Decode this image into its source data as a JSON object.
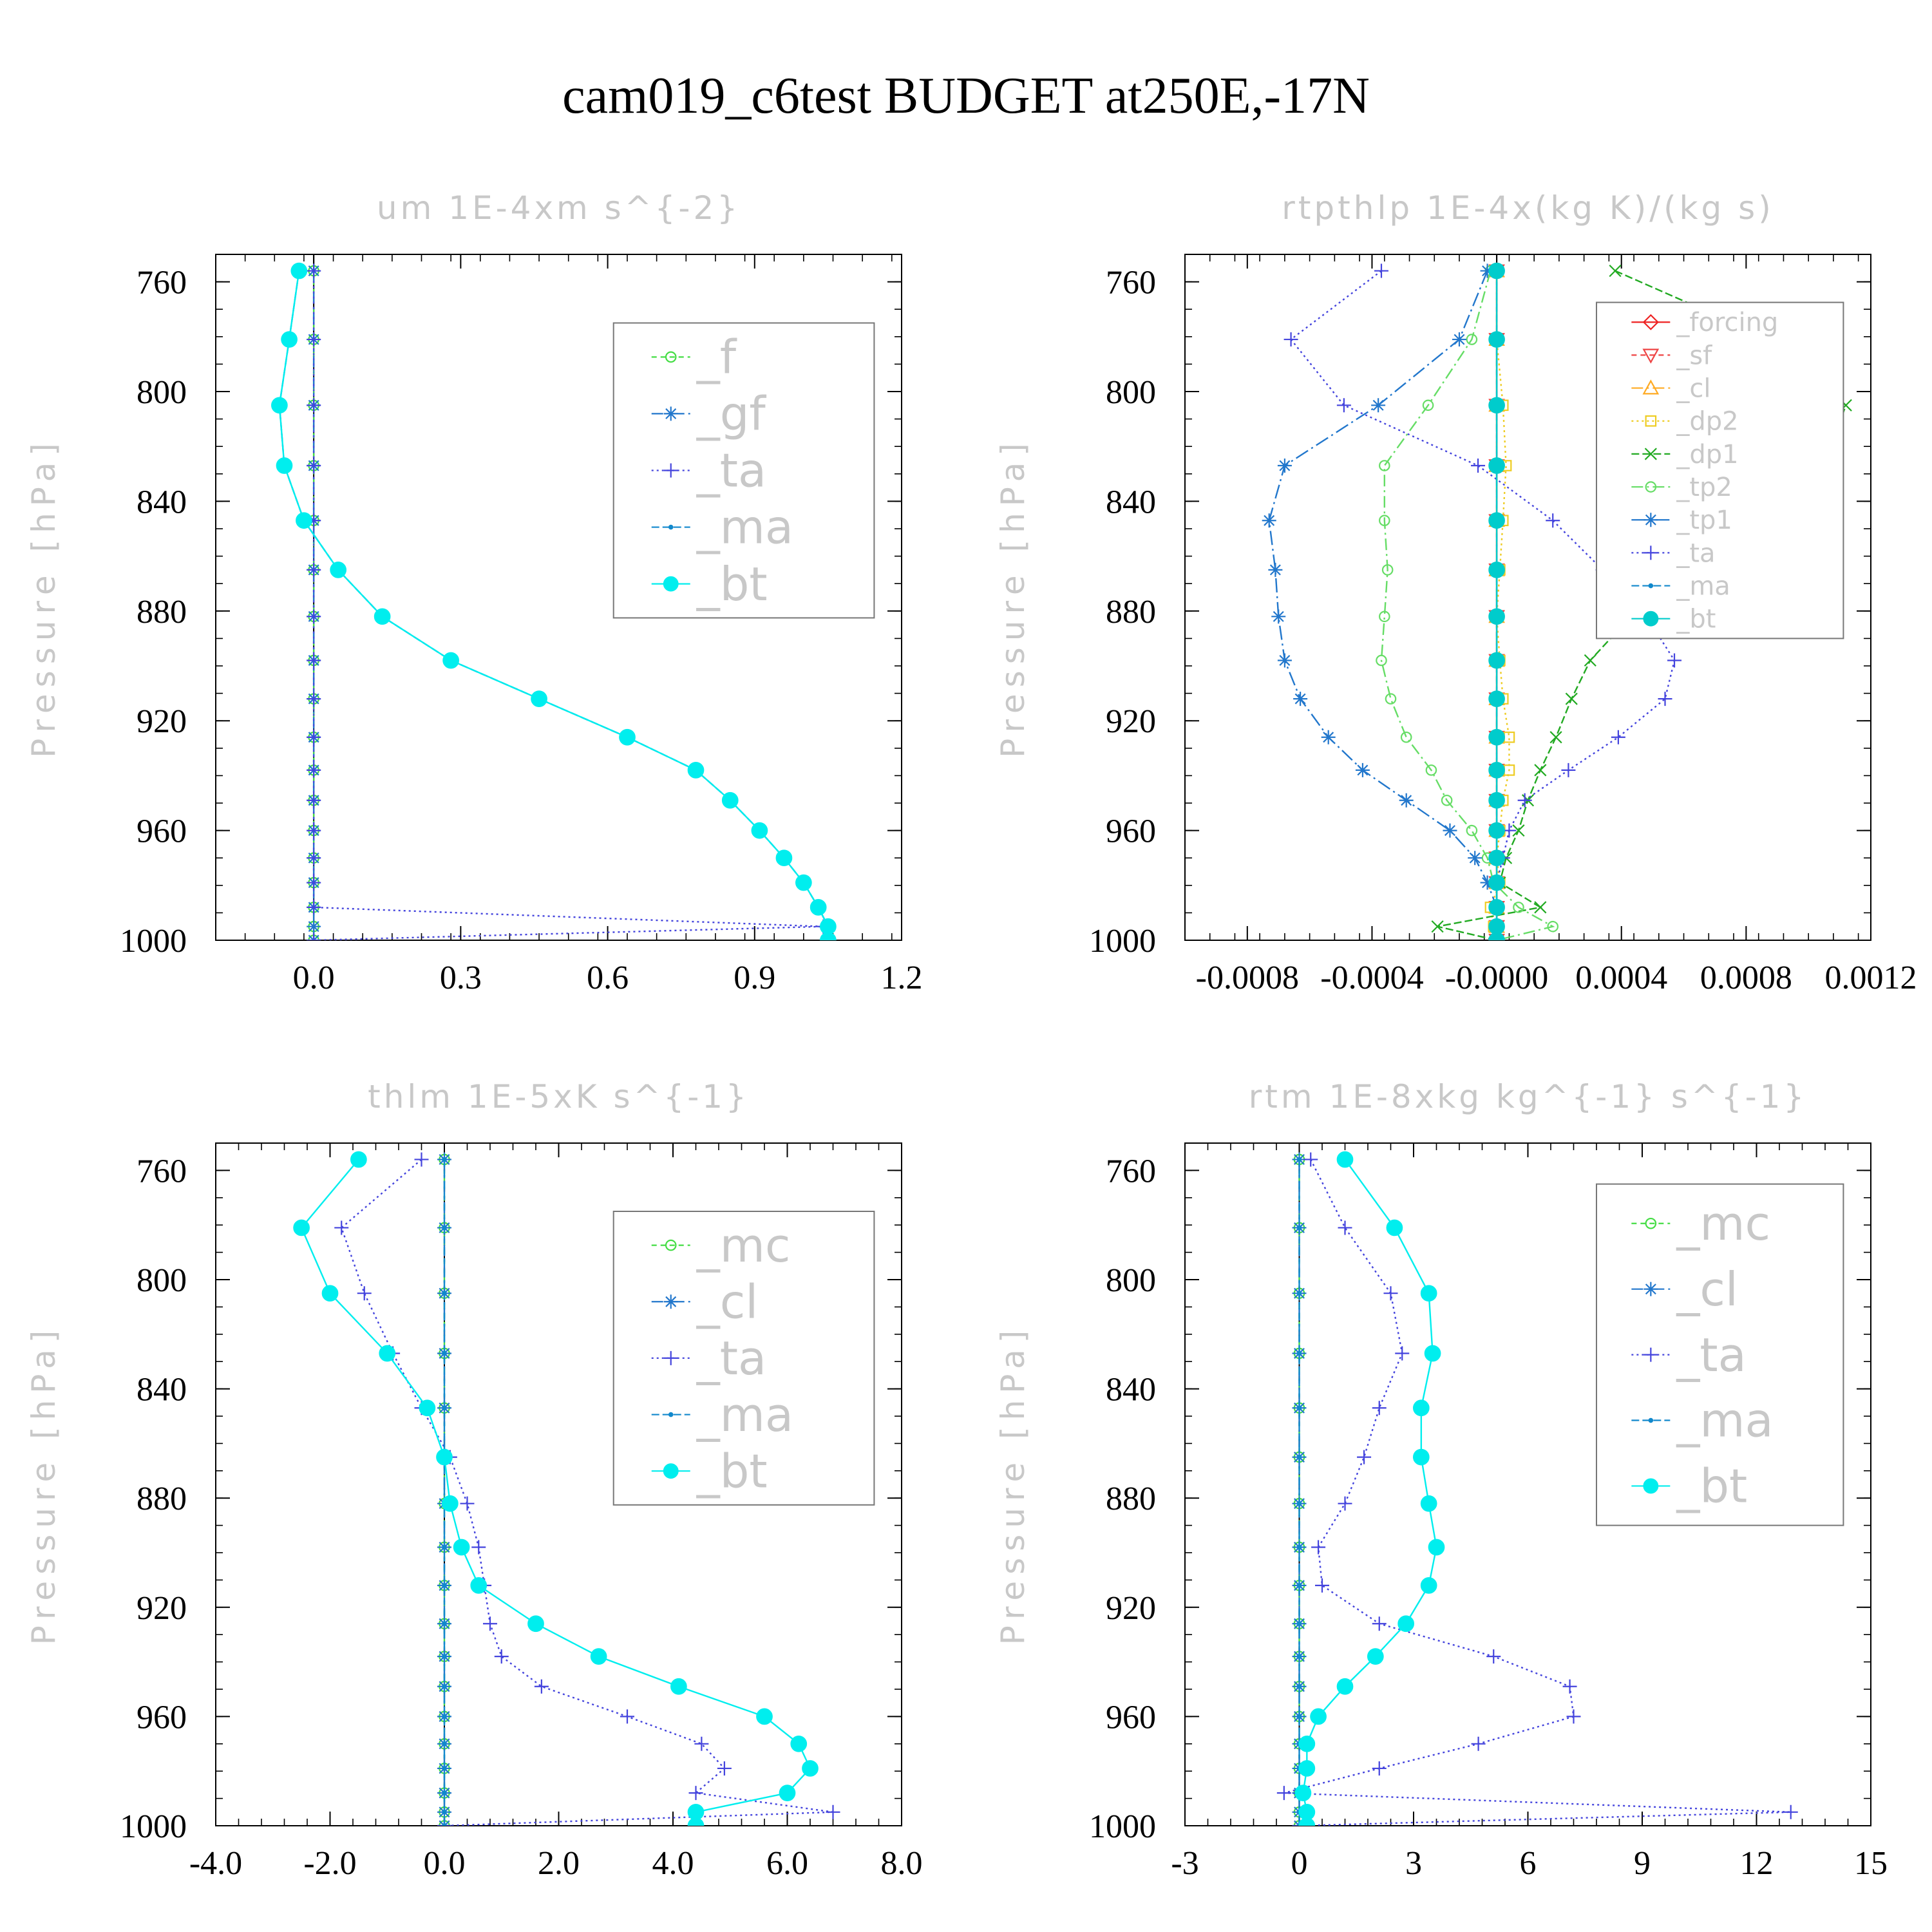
{
  "title": "cam019_c6test  BUDGET at250E,-17N",
  "chart_data": [
    {
      "type": "line",
      "title": "um   1E-4xm s^{-2}",
      "ylabel": "Pressure [hPa]",
      "xlim": [
        -0.2,
        1.2
      ],
      "ylim": [
        1000,
        750
      ],
      "xticks": [
        0.0,
        0.3,
        0.6,
        0.9,
        1.2
      ],
      "xtick_labels": [
        "0.0",
        "0.3",
        "0.6",
        "0.9",
        "1.2"
      ],
      "yticks": [
        760,
        800,
        840,
        880,
        920,
        960,
        1000
      ],
      "levels": [
        756,
        781,
        805,
        827,
        847,
        865,
        882,
        898,
        912,
        926,
        938,
        949,
        960,
        970,
        979,
        988,
        995,
        1000
      ],
      "legend": "right",
      "legend_box": [
        0.58,
        0.1,
        0.96,
        0.53
      ],
      "series": [
        {
          "name": "_f",
          "color": "#44dd44",
          "marker": "circle",
          "dash": "8 6",
          "values": [
            0,
            0,
            0,
            0,
            0,
            0,
            0,
            0,
            0,
            0,
            0,
            0,
            0,
            0,
            0,
            0,
            0,
            0
          ]
        },
        {
          "name": "_gf",
          "color": "#2277cc",
          "marker": "star",
          "dash": "18 6 3 6",
          "values": [
            0,
            0,
            0,
            0,
            0,
            0,
            0,
            0,
            0,
            0,
            0,
            0,
            0,
            0,
            0,
            0,
            0,
            0
          ]
        },
        {
          "name": "_ta",
          "color": "#4444dd",
          "marker": "plus",
          "dash": "3 5",
          "values": [
            0,
            0,
            0,
            0,
            0,
            0,
            0,
            0,
            0,
            0,
            0,
            0,
            0,
            0,
            0,
            0,
            1.04,
            0
          ]
        },
        {
          "name": "_ma",
          "color": "#1188cc",
          "marker": "dot",
          "dash": "12 5",
          "values": [
            -0.03,
            -0.05,
            -0.07,
            -0.06,
            -0.02,
            0.05,
            0.14,
            0.28,
            0.46,
            0.64,
            0.78,
            0.85,
            0.91,
            0.96,
            1.0,
            1.03,
            1.05,
            1.05
          ]
        },
        {
          "name": "_bt",
          "color": "#00eeee",
          "marker": "filled",
          "dash": "",
          "values": [
            -0.03,
            -0.05,
            -0.07,
            -0.06,
            -0.02,
            0.05,
            0.14,
            0.28,
            0.46,
            0.64,
            0.78,
            0.85,
            0.91,
            0.96,
            1.0,
            1.03,
            1.05,
            1.05
          ]
        }
      ]
    },
    {
      "type": "line",
      "title": "rtpthlp   1E-4x(kg K)/(kg s)",
      "ylabel": "Pressure [hPa]",
      "xlim": [
        -0.001,
        0.0012
      ],
      "ylim": [
        1000,
        750
      ],
      "xticks": [
        -0.0008,
        -0.0004,
        0.0,
        0.0004,
        0.0008,
        0.0012
      ],
      "xtick_labels": [
        "-0.0008",
        "-0.0004",
        "-0.0000",
        "0.0004",
        "0.0008",
        "0.0012"
      ],
      "yticks": [
        760,
        800,
        840,
        880,
        920,
        960,
        1000
      ],
      "levels": [
        756,
        781,
        805,
        827,
        847,
        865,
        882,
        898,
        912,
        926,
        938,
        949,
        960,
        970,
        979,
        988,
        995,
        1000
      ],
      "legend": "right",
      "legend_box": [
        0.6,
        0.07,
        0.96,
        0.56
      ],
      "series": [
        {
          "name": "_forcing",
          "color": "#ee2222",
          "marker": "diamond",
          "dash": "",
          "values": [
            0,
            0,
            0,
            0,
            0,
            0,
            0,
            0,
            0,
            0,
            0,
            0,
            0,
            0,
            0,
            0,
            0,
            0
          ]
        },
        {
          "name": "_sf",
          "color": "#ee4444",
          "marker": "tridown",
          "dash": "8 6",
          "values": [
            0,
            0,
            0,
            0,
            0,
            0,
            0,
            0,
            0,
            0,
            0,
            0,
            0,
            0,
            0,
            0,
            0,
            0
          ]
        },
        {
          "name": "_cl",
          "color": "#ffaa22",
          "marker": "triup",
          "dash": "18 6 3 6",
          "values": [
            0,
            0,
            0,
            0,
            0,
            0,
            0,
            0,
            0,
            0,
            0,
            0,
            0,
            0,
            0,
            0,
            0,
            0
          ]
        },
        {
          "name": "_dp2",
          "color": "#eecc22",
          "marker": "square",
          "dash": "3 5",
          "values": [
            0,
            0,
            2e-05,
            3e-05,
            2e-05,
            1e-05,
            0,
            1e-05,
            2e-05,
            4e-05,
            4e-05,
            2e-05,
            1e-05,
            0,
            1e-05,
            -2e-05,
            -1e-05,
            0
          ]
        },
        {
          "name": "_dp1",
          "color": "#22aa22",
          "marker": "x",
          "dash": "12 5",
          "values": [
            0.00038,
            0.00088,
            0.00112,
            0.00105,
            0.00082,
            0.00062,
            0.00043,
            0.0003,
            0.00024,
            0.00019,
            0.00014,
            0.0001,
            7e-05,
            3e-05,
            1e-05,
            0.00014,
            -0.00019,
            0
          ]
        },
        {
          "name": "_tp2",
          "color": "#66dd66",
          "marker": "circle",
          "dash": "18 6 3 6",
          "values": [
            -2e-05,
            -8e-05,
            -0.00022,
            -0.00036,
            -0.00036,
            -0.00035,
            -0.00036,
            -0.00037,
            -0.00034,
            -0.00029,
            -0.00021,
            -0.00016,
            -8e-05,
            -3e-05,
            -1e-05,
            7e-05,
            0.00018,
            0
          ]
        },
        {
          "name": "_tp1",
          "color": "#2277cc",
          "marker": "star",
          "dash": "22 6 3 6",
          "values": [
            -3e-05,
            -0.00012,
            -0.00038,
            -0.00068,
            -0.00073,
            -0.00071,
            -0.0007,
            -0.00068,
            -0.00063,
            -0.00054,
            -0.00043,
            -0.00029,
            -0.00015,
            -7e-05,
            -3e-05,
            0,
            0,
            0
          ]
        },
        {
          "name": "_ta",
          "color": "#4444dd",
          "marker": "plus",
          "dash": "3 5",
          "values": [
            -0.00037,
            -0.00066,
            -0.00049,
            -6e-05,
            0.00018,
            0.00034,
            0.00048,
            0.00057,
            0.00054,
            0.00039,
            0.00023,
            9e-05,
            4e-05,
            2e-05,
            0,
            0,
            0,
            0
          ]
        },
        {
          "name": "_ma",
          "color": "#1188cc",
          "marker": "dot",
          "dash": "12 5",
          "values": [
            0,
            0,
            0,
            0,
            0,
            0,
            0,
            0,
            0,
            0,
            0,
            0,
            0,
            0,
            0,
            0,
            0,
            0
          ]
        },
        {
          "name": "_bt",
          "color": "#00cccc",
          "marker": "filled",
          "dash": "",
          "values": [
            0,
            0,
            0,
            0,
            0,
            0,
            0,
            0,
            0,
            0,
            0,
            0,
            0,
            0,
            0,
            0,
            0,
            0
          ]
        }
      ]
    },
    {
      "type": "line",
      "title": "thlm   1E-5xK s^{-1}",
      "ylabel": "Pressure [hPa]",
      "xlim": [
        -4.0,
        8.0
      ],
      "ylim": [
        1000,
        750
      ],
      "xticks": [
        -4.0,
        -2.0,
        0.0,
        2.0,
        4.0,
        6.0,
        8.0
      ],
      "xtick_labels": [
        "-4.0",
        "-2.0",
        "0.0",
        "2.0",
        "4.0",
        "6.0",
        "8.0"
      ],
      "yticks": [
        760,
        800,
        840,
        880,
        920,
        960,
        1000
      ],
      "levels": [
        756,
        781,
        805,
        827,
        847,
        865,
        882,
        898,
        912,
        926,
        938,
        949,
        960,
        970,
        979,
        988,
        995,
        1000
      ],
      "legend": "right",
      "legend_box": [
        0.58,
        0.1,
        0.96,
        0.53
      ],
      "series": [
        {
          "name": "_mc",
          "color": "#44dd44",
          "marker": "circle",
          "dash": "8 6",
          "values": [
            0,
            0,
            0,
            0,
            0,
            0,
            0,
            0,
            0,
            0,
            0,
            0,
            0,
            0,
            0,
            0,
            0,
            0
          ]
        },
        {
          "name": "_cl",
          "color": "#2277cc",
          "marker": "star",
          "dash": "18 6 3 6",
          "values": [
            0,
            0,
            0,
            0,
            0,
            0,
            0,
            0,
            0,
            0,
            0,
            0,
            0,
            0,
            0,
            0,
            0,
            0
          ]
        },
        {
          "name": "_ta",
          "color": "#4444dd",
          "marker": "plus",
          "dash": "3 5",
          "values": [
            -0.4,
            -1.8,
            -1.4,
            -0.9,
            -0.4,
            0.1,
            0.4,
            0.6,
            0.7,
            0.8,
            1.0,
            1.7,
            3.2,
            4.5,
            4.9,
            4.4,
            6.8,
            0
          ]
        },
        {
          "name": "_ma",
          "color": "#1188cc",
          "marker": "dot",
          "dash": "12 5",
          "values": [
            0,
            0,
            0,
            0,
            0,
            0,
            0,
            0,
            0,
            0,
            0,
            0,
            0,
            0,
            0,
            0,
            0,
            0
          ]
        },
        {
          "name": "_bt",
          "color": "#00eeee",
          "marker": "filled",
          "dash": "",
          "values": [
            -1.5,
            -2.5,
            -2.0,
            -1.0,
            -0.3,
            0.0,
            0.1,
            0.3,
            0.6,
            1.6,
            2.7,
            4.1,
            5.6,
            6.2,
            6.4,
            6.0,
            4.4,
            4.4
          ]
        }
      ]
    },
    {
      "type": "line",
      "title": "rtm   1E-8xkg kg^{-1} s^{-1}",
      "ylabel": "Pressure [hPa]",
      "xlim": [
        -3,
        15
      ],
      "ylim": [
        1000,
        750
      ],
      "xticks": [
        -3,
        0,
        3,
        6,
        9,
        12,
        15
      ],
      "xtick_labels": [
        "-3",
        "0",
        "3",
        "6",
        "9",
        "12",
        "15"
      ],
      "yticks": [
        760,
        800,
        840,
        880,
        920,
        960,
        1000
      ],
      "levels": [
        756,
        781,
        805,
        827,
        847,
        865,
        882,
        898,
        912,
        926,
        938,
        949,
        960,
        970,
        979,
        988,
        995,
        1000
      ],
      "legend": "right",
      "legend_box": [
        0.6,
        0.06,
        0.96,
        0.56
      ],
      "series": [
        {
          "name": "_mc",
          "color": "#44dd44",
          "marker": "circle",
          "dash": "8 6",
          "values": [
            0,
            0,
            0,
            0,
            0,
            0,
            0,
            0,
            0,
            0,
            0,
            0,
            0,
            0,
            0,
            0,
            0,
            0
          ]
        },
        {
          "name": "_cl",
          "color": "#2277cc",
          "marker": "star",
          "dash": "18 6 3 6",
          "values": [
            0,
            0,
            0,
            0,
            0,
            0,
            0,
            0,
            0,
            0,
            0,
            0,
            0,
            0,
            0,
            0,
            0,
            0
          ]
        },
        {
          "name": "_ta",
          "color": "#4444dd",
          "marker": "plus",
          "dash": "3 5",
          "values": [
            0.3,
            1.2,
            2.4,
            2.7,
            2.1,
            1.7,
            1.2,
            0.5,
            0.6,
            2.1,
            5.1,
            7.1,
            7.2,
            4.7,
            2.1,
            -0.4,
            12.9,
            0
          ]
        },
        {
          "name": "_ma",
          "color": "#1188cc",
          "marker": "dot",
          "dash": "12 5",
          "values": [
            0,
            0,
            0,
            0,
            0,
            0,
            0,
            0,
            0,
            0,
            0,
            0,
            0,
            0,
            0,
            0,
            0,
            0
          ]
        },
        {
          "name": "_bt",
          "color": "#00eeee",
          "marker": "filled",
          "dash": "",
          "values": [
            1.2,
            2.5,
            3.4,
            3.5,
            3.2,
            3.2,
            3.4,
            3.6,
            3.4,
            2.8,
            2.0,
            1.2,
            0.5,
            0.2,
            0.2,
            0.1,
            0.2,
            0.2
          ]
        }
      ]
    }
  ]
}
